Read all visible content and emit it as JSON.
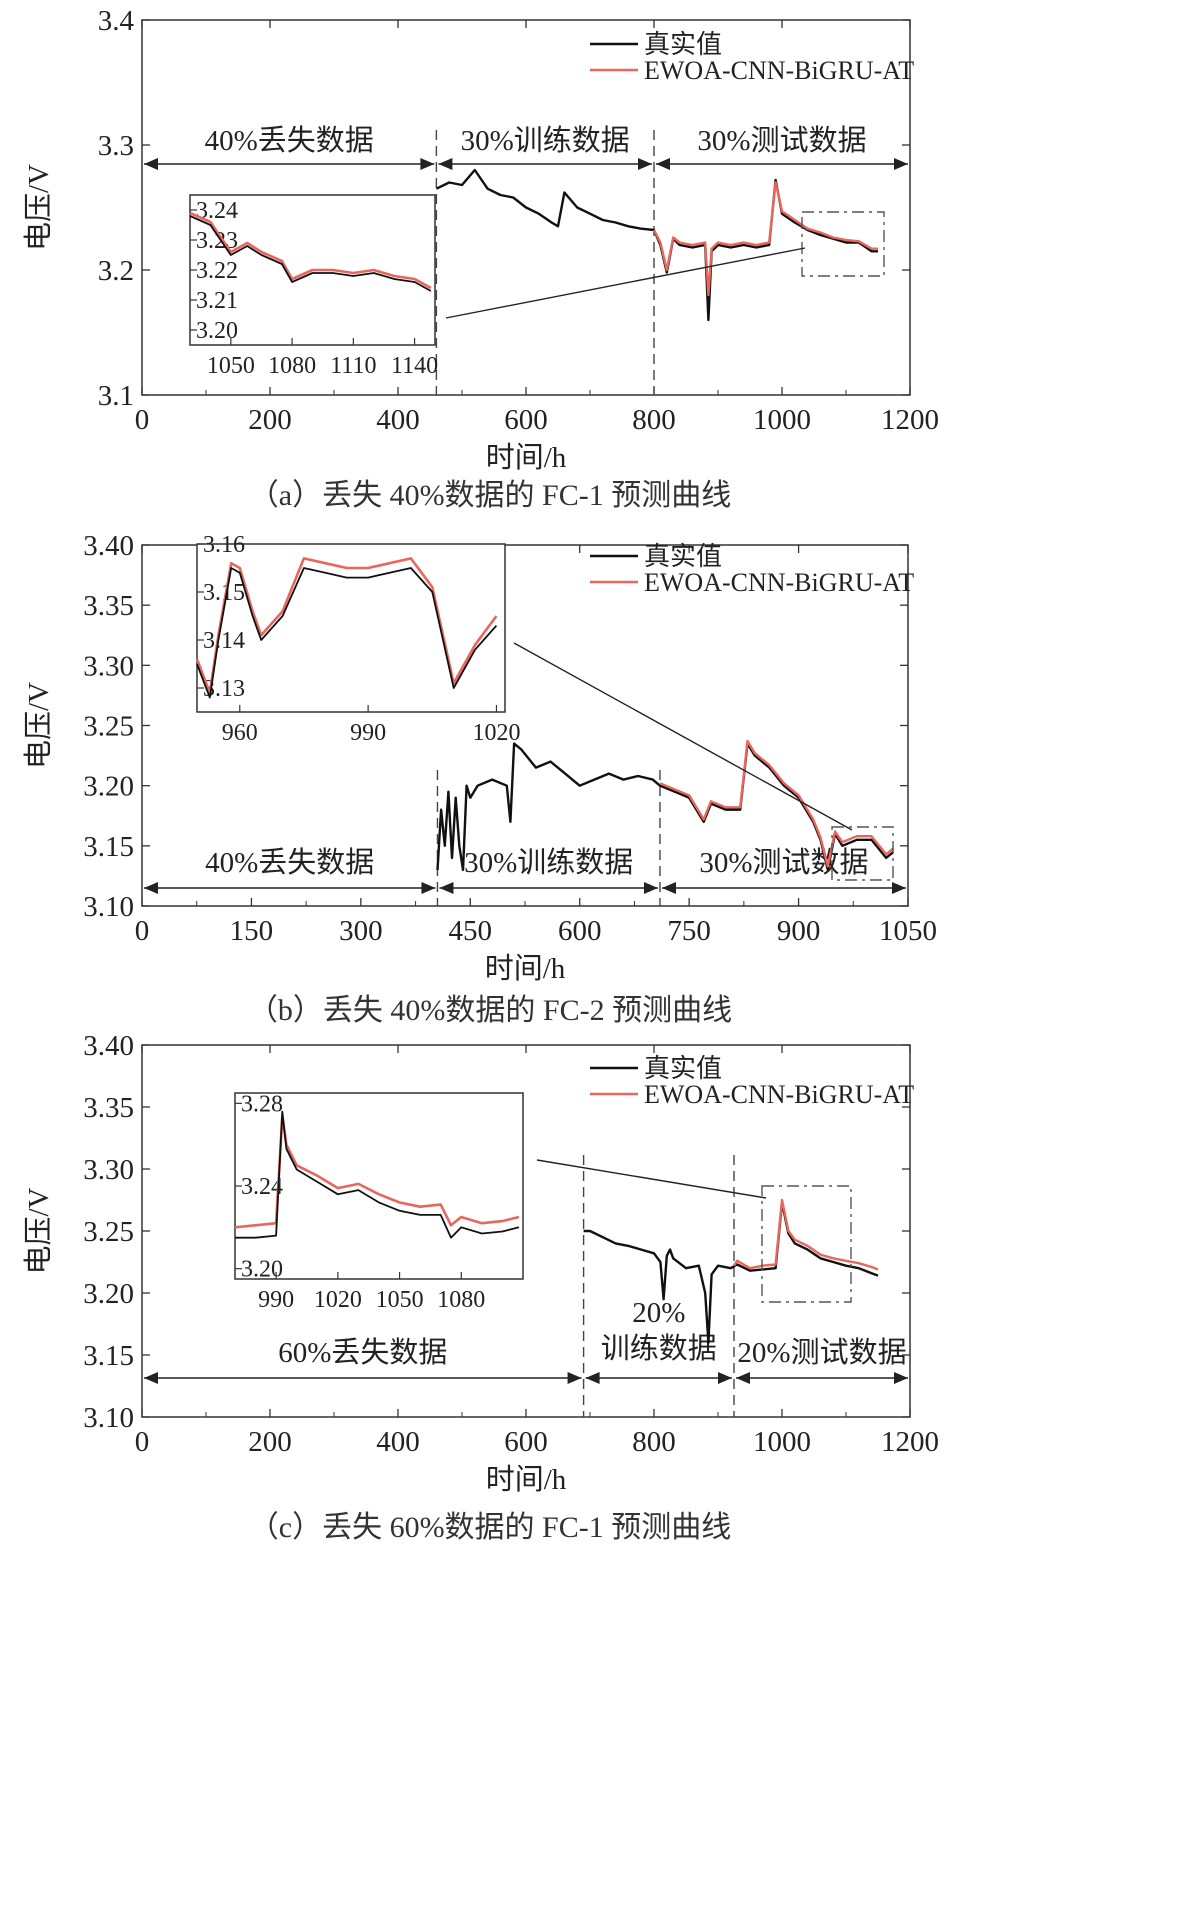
{
  "colors": {
    "actual": "#111111",
    "predicted": "#e8665e",
    "axis": "#333333"
  },
  "legend": {
    "actual": "真实值",
    "predicted": "EWOA-CNN-BiGRU-AT"
  },
  "chart_data": [
    {
      "type": "line",
      "panel": "a",
      "caption": "（a）丢失 40%数据的 FC-1 预测曲线",
      "xlabel": "时间/h",
      "ylabel": "电压/V",
      "xlim": [
        0,
        1200
      ],
      "ylim": [
        3.1,
        3.4
      ],
      "xticks": [
        0,
        200,
        400,
        600,
        800,
        1000,
        1200
      ],
      "yticks": [
        "3.1",
        "3.2",
        "3.3",
        "3.4"
      ],
      "segments": [
        {
          "label": "40%丢失数据",
          "x": [
            0,
            460
          ]
        },
        {
          "label": "30%训练数据",
          "x": [
            460,
            800
          ]
        },
        {
          "label": "30%测试数据",
          "x": [
            800,
            1200
          ]
        }
      ],
      "dividers": [
        460,
        800
      ],
      "series": [
        {
          "name": "真实值",
          "x": [
            460,
            480,
            500,
            520,
            540,
            560,
            580,
            600,
            620,
            640,
            650,
            660,
            680,
            700,
            720,
            740,
            760,
            780,
            800,
            810,
            820,
            830,
            840,
            860,
            880,
            885,
            890,
            900,
            920,
            940,
            960,
            980,
            990,
            1000,
            1020,
            1040,
            1060,
            1080,
            1100,
            1120,
            1140,
            1150
          ],
          "y": [
            3.265,
            3.27,
            3.268,
            3.28,
            3.265,
            3.26,
            3.258,
            3.25,
            3.245,
            3.238,
            3.235,
            3.262,
            3.25,
            3.245,
            3.24,
            3.238,
            3.235,
            3.233,
            3.232,
            3.22,
            3.198,
            3.225,
            3.22,
            3.218,
            3.22,
            3.16,
            3.215,
            3.22,
            3.218,
            3.22,
            3.218,
            3.22,
            3.272,
            3.245,
            3.238,
            3.232,
            3.228,
            3.225,
            3.222,
            3.222,
            3.215,
            3.215
          ]
        },
        {
          "name": "EWOA-CNN-BiGRU-AT",
          "x": [
            800,
            810,
            820,
            830,
            840,
            860,
            880,
            885,
            890,
            900,
            920,
            940,
            960,
            980,
            990,
            1000,
            1020,
            1040,
            1060,
            1080,
            1100,
            1120,
            1140,
            1150
          ],
          "y": [
            3.232,
            3.222,
            3.2,
            3.226,
            3.222,
            3.22,
            3.222,
            3.18,
            3.217,
            3.222,
            3.22,
            3.222,
            3.22,
            3.222,
            3.27,
            3.247,
            3.24,
            3.233,
            3.23,
            3.226,
            3.224,
            3.223,
            3.217,
            3.217
          ]
        }
      ],
      "inset": {
        "xlim": [
          1030,
          1150
        ],
        "ylim": [
          3.195,
          3.245
        ],
        "xticks": [
          1050,
          1080,
          1110,
          1140
        ],
        "yticks": [
          "3.20",
          "3.21",
          "3.22",
          "3.23",
          "3.24"
        ],
        "actual": {
          "x": [
            1030,
            1040,
            1045,
            1050,
            1058,
            1065,
            1075,
            1080,
            1090,
            1100,
            1110,
            1120,
            1130,
            1140,
            1148
          ],
          "y": [
            3.238,
            3.235,
            3.23,
            3.225,
            3.228,
            3.225,
            3.222,
            3.216,
            3.219,
            3.219,
            3.218,
            3.219,
            3.217,
            3.216,
            3.213
          ]
        },
        "predicted": {
          "x": [
            1030,
            1040,
            1045,
            1050,
            1058,
            1065,
            1075,
            1080,
            1090,
            1100,
            1110,
            1120,
            1130,
            1140,
            1148
          ],
          "y": [
            3.239,
            3.236,
            3.231,
            3.226,
            3.229,
            3.226,
            3.223,
            3.217,
            3.22,
            3.22,
            3.219,
            3.22,
            3.218,
            3.217,
            3.214
          ]
        }
      }
    },
    {
      "type": "line",
      "panel": "b",
      "caption": "（b）丢失 40%数据的 FC-2 预测曲线",
      "xlabel": "时间/h",
      "ylabel": "电压/V",
      "xlim": [
        0,
        1050
      ],
      "ylim": [
        3.1,
        3.4
      ],
      "xticks": [
        0,
        150,
        300,
        450,
        600,
        750,
        900,
        1050
      ],
      "yticks": [
        "3.10",
        "3.15",
        "3.20",
        "3.25",
        "3.30",
        "3.35",
        "3.40"
      ],
      "segments": [
        {
          "label": "40%丢失数据",
          "x": [
            0,
            405
          ]
        },
        {
          "label": "30%训练数据",
          "x": [
            405,
            710
          ]
        },
        {
          "label": "30%测试数据",
          "x": [
            710,
            1050
          ]
        }
      ],
      "dividers": [
        405,
        710
      ],
      "series": [
        {
          "name": "真实值",
          "x": [
            405,
            410,
            415,
            420,
            425,
            430,
            435,
            440,
            445,
            450,
            460,
            480,
            500,
            505,
            510,
            520,
            540,
            560,
            580,
            600,
            620,
            640,
            660,
            680,
            700,
            710,
            730,
            750,
            770,
            780,
            800,
            820,
            830,
            840,
            860,
            880,
            900,
            920,
            930,
            940,
            950,
            960,
            980,
            1000,
            1020,
            1030
          ],
          "y": [
            3.13,
            3.18,
            3.15,
            3.195,
            3.14,
            3.19,
            3.15,
            3.13,
            3.2,
            3.19,
            3.2,
            3.205,
            3.2,
            3.17,
            3.235,
            3.23,
            3.215,
            3.22,
            3.21,
            3.2,
            3.205,
            3.21,
            3.205,
            3.208,
            3.205,
            3.2,
            3.195,
            3.19,
            3.17,
            3.185,
            3.18,
            3.18,
            3.235,
            3.225,
            3.215,
            3.2,
            3.19,
            3.17,
            3.155,
            3.13,
            3.16,
            3.15,
            3.155,
            3.155,
            3.14,
            3.145
          ]
        },
        {
          "name": "EWOA-CNN-BiGRU-AT",
          "x": [
            710,
            730,
            750,
            770,
            780,
            800,
            820,
            830,
            840,
            860,
            880,
            900,
            920,
            930,
            940,
            950,
            960,
            980,
            1000,
            1020,
            1030
          ],
          "y": [
            3.202,
            3.197,
            3.192,
            3.172,
            3.187,
            3.182,
            3.182,
            3.237,
            3.227,
            3.217,
            3.202,
            3.192,
            3.172,
            3.157,
            3.133,
            3.162,
            3.153,
            3.158,
            3.158,
            3.143,
            3.148
          ]
        }
      ],
      "inset": {
        "xlim": [
          950,
          1022
        ],
        "ylim": [
          3.125,
          3.16
        ],
        "xticks": [
          960,
          990,
          1020
        ],
        "yticks": [
          "3.13",
          "3.14",
          "3.15",
          "3.16"
        ],
        "actual": {
          "x": [
            950,
            953,
            955,
            958,
            960,
            963,
            965,
            970,
            975,
            980,
            985,
            990,
            1000,
            1005,
            1010,
            1015,
            1020
          ],
          "y": [
            3.135,
            3.128,
            3.14,
            3.155,
            3.154,
            3.145,
            3.14,
            3.145,
            3.155,
            3.154,
            3.153,
            3.153,
            3.155,
            3.15,
            3.13,
            3.138,
            3.143
          ]
        },
        "predicted": {
          "x": [
            950,
            953,
            955,
            958,
            960,
            963,
            965,
            970,
            975,
            980,
            985,
            990,
            1000,
            1005,
            1010,
            1015,
            1020
          ],
          "y": [
            3.136,
            3.129,
            3.141,
            3.156,
            3.155,
            3.146,
            3.141,
            3.146,
            3.157,
            3.156,
            3.155,
            3.155,
            3.157,
            3.151,
            3.131,
            3.139,
            3.145
          ]
        }
      }
    },
    {
      "type": "line",
      "panel": "c",
      "caption": "（c）丢失 60%数据的 FC-1 预测曲线",
      "xlabel": "时间/h",
      "ylabel": "电压/V",
      "xlim": [
        0,
        1200
      ],
      "ylim": [
        3.1,
        3.4
      ],
      "xticks": [
        0,
        200,
        400,
        600,
        800,
        1000,
        1200
      ],
      "yticks": [
        "3.10",
        "3.15",
        "3.20",
        "3.25",
        "3.30",
        "3.35",
        "3.40"
      ],
      "segments": [
        {
          "label": "60%丢失数据",
          "x": [
            0,
            690
          ]
        },
        {
          "label": "20%训练数据",
          "x": [
            690,
            925
          ]
        },
        {
          "label": "20%测试数据",
          "x": [
            925,
            1200
          ]
        }
      ],
      "segment_labels_multiline": {
        "20%训练数据": [
          "20%",
          "训练数据"
        ]
      },
      "dividers": [
        690,
        925
      ],
      "series": [
        {
          "name": "真实值",
          "x": [
            690,
            700,
            720,
            740,
            760,
            780,
            800,
            810,
            815,
            820,
            825,
            830,
            850,
            870,
            880,
            885,
            890,
            900,
            920,
            930,
            950,
            970,
            990,
            1000,
            1010,
            1020,
            1040,
            1060,
            1080,
            1100,
            1120,
            1140,
            1150
          ],
          "y": [
            3.25,
            3.25,
            3.245,
            3.24,
            3.238,
            3.235,
            3.232,
            3.225,
            3.195,
            3.23,
            3.235,
            3.228,
            3.22,
            3.222,
            3.2,
            3.16,
            3.215,
            3.222,
            3.22,
            3.223,
            3.218,
            3.219,
            3.22,
            3.273,
            3.248,
            3.24,
            3.235,
            3.228,
            3.225,
            3.222,
            3.22,
            3.216,
            3.214
          ]
        },
        {
          "name": "EWOA-CNN-BiGRU-AT",
          "x": [
            925,
            930,
            950,
            970,
            990,
            1000,
            1010,
            1020,
            1040,
            1060,
            1080,
            1100,
            1120,
            1140,
            1150
          ],
          "y": [
            3.222,
            3.226,
            3.22,
            3.222,
            3.223,
            3.275,
            3.25,
            3.243,
            3.238,
            3.231,
            3.228,
            3.226,
            3.224,
            3.221,
            3.219
          ]
        }
      ],
      "inset": {
        "xlim": [
          970,
          1110
        ],
        "ylim": [
          3.195,
          3.285
        ],
        "xticks": [
          990,
          1020,
          1050,
          1080
        ],
        "yticks": [
          "3.20",
          "3.24",
          "3.28"
        ],
        "actual": {
          "x": [
            970,
            980,
            990,
            993,
            995,
            1000,
            1010,
            1020,
            1030,
            1040,
            1050,
            1060,
            1070,
            1075,
            1080,
            1090,
            1100,
            1108
          ],
          "y": [
            3.215,
            3.215,
            3.216,
            3.276,
            3.258,
            3.248,
            3.242,
            3.236,
            3.238,
            3.232,
            3.228,
            3.226,
            3.226,
            3.215,
            3.22,
            3.217,
            3.218,
            3.22
          ]
        },
        "predicted": {
          "x": [
            970,
            980,
            990,
            993,
            995,
            1000,
            1010,
            1020,
            1030,
            1040,
            1050,
            1060,
            1070,
            1075,
            1080,
            1090,
            1100,
            1108
          ],
          "y": [
            3.22,
            3.221,
            3.222,
            3.274,
            3.26,
            3.25,
            3.245,
            3.239,
            3.241,
            3.236,
            3.232,
            3.23,
            3.231,
            3.221,
            3.225,
            3.222,
            3.223,
            3.225
          ]
        }
      }
    }
  ]
}
